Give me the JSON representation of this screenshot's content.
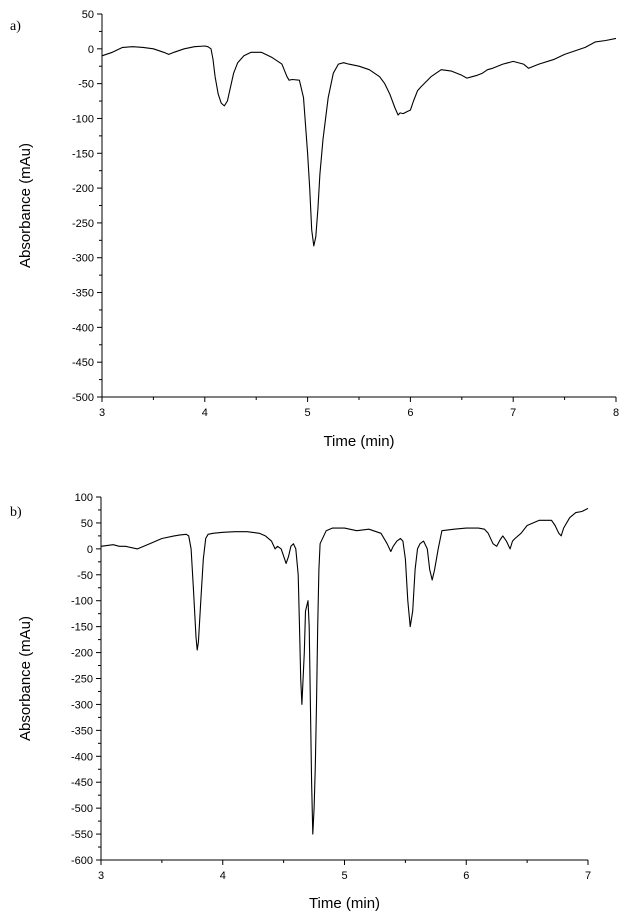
{
  "chart_data": [
    {
      "type": "line",
      "panel_label": "a)",
      "xlabel": "Time (min)",
      "ylabel": "Absorbance (mAu)",
      "xlim": [
        3,
        8
      ],
      "ylim": [
        -500,
        50
      ],
      "x_ticks": [
        3,
        4,
        5,
        6,
        7,
        8
      ],
      "y_ticks": [
        50,
        0,
        -50,
        -100,
        -150,
        -200,
        -250,
        -300,
        -350,
        -400,
        -450,
        -500
      ],
      "series": [
        {
          "color": "#000000",
          "x": [
            3.0,
            3.1,
            3.2,
            3.3,
            3.4,
            3.5,
            3.6,
            3.65,
            3.7,
            3.8,
            3.9,
            4.0,
            4.03,
            4.06,
            4.08,
            4.1,
            4.13,
            4.16,
            4.19,
            4.22,
            4.25,
            4.28,
            4.32,
            4.38,
            4.45,
            4.55,
            4.65,
            4.75,
            4.8,
            4.82,
            4.85,
            4.92,
            4.96,
            5.0,
            5.02,
            5.04,
            5.06,
            5.08,
            5.1,
            5.12,
            5.15,
            5.2,
            5.25,
            5.3,
            5.35,
            5.4,
            5.5,
            5.6,
            5.7,
            5.75,
            5.8,
            5.85,
            5.88,
            5.9,
            5.93,
            5.97,
            6.0,
            6.03,
            6.07,
            6.1,
            6.2,
            6.3,
            6.4,
            6.5,
            6.55,
            6.6,
            6.65,
            6.7,
            6.75,
            6.8,
            6.9,
            7.0,
            7.1,
            7.15,
            7.25,
            7.4,
            7.5,
            7.6,
            7.7,
            7.8,
            7.9,
            8.0
          ],
          "y": [
            -10,
            -5,
            2,
            3,
            2,
            0,
            -5,
            -8,
            -5,
            0,
            3,
            4,
            3,
            0,
            -15,
            -40,
            -65,
            -78,
            -82,
            -75,
            -55,
            -35,
            -20,
            -10,
            -5,
            -5,
            -12,
            -22,
            -40,
            -45,
            -44,
            -45,
            -70,
            -150,
            -200,
            -260,
            -283,
            -270,
            -230,
            -180,
            -130,
            -70,
            -35,
            -22,
            -20,
            -22,
            -25,
            -30,
            -40,
            -50,
            -65,
            -85,
            -95,
            -92,
            -93,
            -90,
            -88,
            -75,
            -60,
            -55,
            -40,
            -30,
            -32,
            -38,
            -42,
            -40,
            -38,
            -35,
            -30,
            -28,
            -22,
            -18,
            -22,
            -28,
            -22,
            -15,
            -8,
            -3,
            2,
            10,
            12,
            15
          ]
        }
      ]
    },
    {
      "type": "line",
      "panel_label": "b)",
      "xlabel": "Time (min)",
      "ylabel": "Absorbance (mAu)",
      "xlim": [
        3,
        7
      ],
      "ylim": [
        -600,
        100
      ],
      "x_ticks": [
        3,
        4,
        5,
        6,
        7
      ],
      "y_ticks": [
        100,
        50,
        0,
        -50,
        -100,
        -150,
        -200,
        -250,
        -300,
        -350,
        -400,
        -450,
        -500,
        -550,
        -600
      ],
      "series": [
        {
          "color": "#000000",
          "x": [
            3.0,
            3.1,
            3.15,
            3.2,
            3.3,
            3.4,
            3.5,
            3.6,
            3.65,
            3.7,
            3.72,
            3.74,
            3.76,
            3.78,
            3.79,
            3.8,
            3.82,
            3.84,
            3.86,
            3.88,
            3.92,
            4.0,
            4.1,
            4.2,
            4.3,
            4.35,
            4.4,
            4.43,
            4.45,
            4.48,
            4.52,
            4.54,
            4.56,
            4.58,
            4.6,
            4.62,
            4.63,
            4.64,
            4.65,
            4.67,
            4.68,
            4.7,
            4.71,
            4.72,
            4.73,
            4.74,
            4.75,
            4.76,
            4.77,
            4.78,
            4.79,
            4.8,
            4.85,
            4.9,
            5.0,
            5.1,
            5.2,
            5.3,
            5.35,
            5.38,
            5.4,
            5.43,
            5.46,
            5.48,
            5.5,
            5.52,
            5.54,
            5.56,
            5.58,
            5.6,
            5.62,
            5.65,
            5.68,
            5.7,
            5.72,
            5.74,
            5.77,
            5.8,
            5.9,
            6.0,
            6.1,
            6.15,
            6.18,
            6.22,
            6.25,
            6.28,
            6.3,
            6.33,
            6.36,
            6.38,
            6.4,
            6.45,
            6.5,
            6.6,
            6.7,
            6.73,
            6.76,
            6.78,
            6.8,
            6.85,
            6.9,
            6.95,
            7.0
          ],
          "y": [
            5,
            8,
            5,
            5,
            0,
            10,
            20,
            25,
            27,
            28,
            25,
            0,
            -80,
            -170,
            -195,
            -180,
            -100,
            -20,
            20,
            28,
            30,
            32,
            33,
            33,
            30,
            25,
            15,
            0,
            5,
            0,
            -28,
            -15,
            5,
            10,
            0,
            -50,
            -150,
            -250,
            -300,
            -200,
            -120,
            -100,
            -150,
            -300,
            -450,
            -550,
            -500,
            -420,
            -300,
            -150,
            -40,
            10,
            35,
            40,
            40,
            35,
            38,
            30,
            10,
            -5,
            5,
            15,
            20,
            15,
            -20,
            -100,
            -150,
            -120,
            -40,
            0,
            10,
            15,
            0,
            -40,
            -60,
            -40,
            0,
            35,
            38,
            40,
            40,
            38,
            30,
            10,
            5,
            18,
            25,
            15,
            0,
            15,
            20,
            30,
            45,
            55,
            55,
            45,
            30,
            25,
            40,
            60,
            70,
            72,
            78
          ]
        }
      ]
    }
  ]
}
